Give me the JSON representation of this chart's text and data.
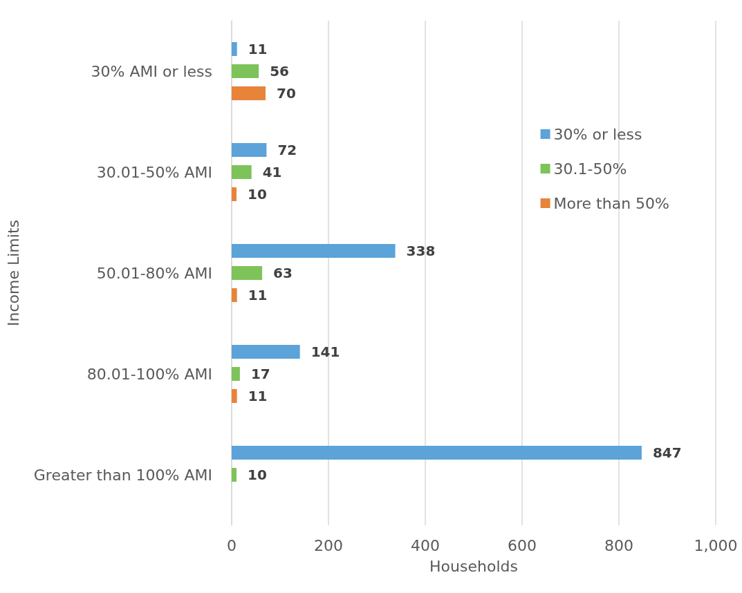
{
  "chart_data": {
    "type": "bar",
    "orientation": "horizontal",
    "xlabel": "Households",
    "ylabel": "Income Limits",
    "categories": [
      "30% AMI or less",
      "30.01-50% AMI",
      "50.01-80% AMI",
      "80.01-100% AMI",
      "Greater than 100% AMI"
    ],
    "series": [
      {
        "name": "30% or less",
        "color": "#5ba3d9",
        "values": [
          11,
          72,
          338,
          141,
          847
        ]
      },
      {
        "name": "30.1-50%",
        "color": "#7dc35a",
        "values": [
          56,
          41,
          63,
          17,
          10
        ]
      },
      {
        "name": "More than 50%",
        "color": "#e8833a",
        "values": [
          70,
          10,
          11,
          11,
          null
        ]
      }
    ],
    "xlim": [
      0,
      1000
    ],
    "xticks": [
      0,
      200,
      400,
      600,
      800,
      {
        "value": 1000,
        "label": "1,000"
      }
    ],
    "grid": "x",
    "legend": "right",
    "data_labels": true
  }
}
